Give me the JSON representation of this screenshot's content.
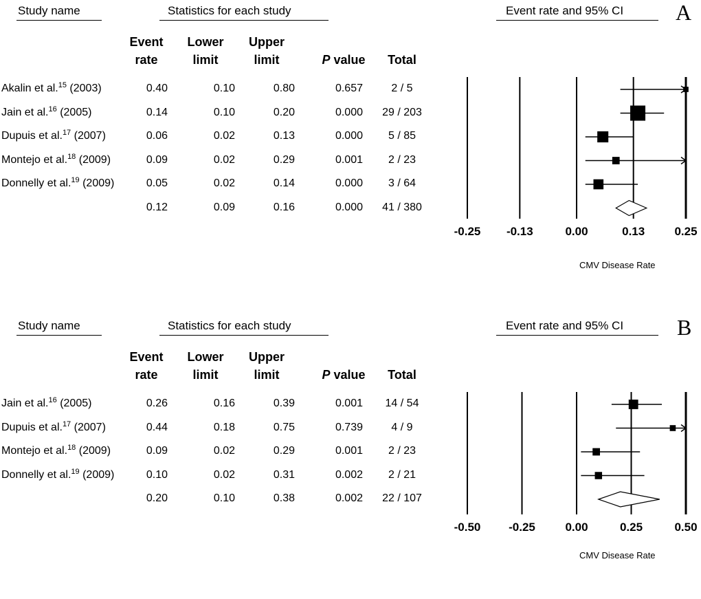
{
  "headers": {
    "study_name": "Study name",
    "statistics": "Statistics for each study",
    "forest": "Event rate and 95% CI",
    "cols": {
      "event_1": "Event",
      "event_2": "rate",
      "lower_1": "Lower",
      "lower_2": "limit",
      "upper_1": "Upper",
      "upper_2": "limit",
      "p_italic": "P",
      "p_rest": " value",
      "total": "Total"
    }
  },
  "chart_data": [
    {
      "type": "forest",
      "panel": "A",
      "xlabel": "CMV Disease Rate",
      "xlim": [
        -0.25,
        0.25
      ],
      "ticks": [
        "-0.25",
        "-0.13",
        "0.00",
        "0.13",
        "0.25"
      ],
      "rows": [
        {
          "study": "Akalin et al.",
          "ref": "15",
          "year": "(2003)",
          "rate": "0.40",
          "lower": "0.10",
          "upper": "0.80",
          "p": "0.657",
          "total": "2 / 5",
          "rate_v": 0.4,
          "lower_v": 0.1,
          "upper_v": 0.8
        },
        {
          "study": "Jain et al.",
          "ref": "16",
          "year": "(2005)",
          "rate": "0.14",
          "lower": "0.10",
          "upper": "0.20",
          "p": "0.000",
          "total": "29 / 203",
          "rate_v": 0.14,
          "lower_v": 0.1,
          "upper_v": 0.2
        },
        {
          "study": "Dupuis et al.",
          "ref": "17",
          "year": "(2007)",
          "rate": "0.06",
          "lower": "0.02",
          "upper": "0.13",
          "p": "0.000",
          "total": "5 / 85",
          "rate_v": 0.06,
          "lower_v": 0.02,
          "upper_v": 0.13
        },
        {
          "study": "Montejo et al.",
          "ref": "18",
          "year": "(2009)",
          "rate": "0.09",
          "lower": "0.02",
          "upper": "0.29",
          "p": "0.001",
          "total": "2 / 23",
          "rate_v": 0.09,
          "lower_v": 0.02,
          "upper_v": 0.29
        },
        {
          "study": "Donnelly et al.",
          "ref": "19",
          "year": "(2009)",
          "rate": "0.05",
          "lower": "0.02",
          "upper": "0.14",
          "p": "0.000",
          "total": "3 / 64",
          "rate_v": 0.05,
          "lower_v": 0.02,
          "upper_v": 0.14
        }
      ],
      "summary": {
        "rate": "0.12",
        "lower": "0.09",
        "upper": "0.16",
        "p": "0.000",
        "total": "41 / 380",
        "rate_v": 0.12,
        "lower_v": 0.09,
        "upper_v": 0.16
      }
    },
    {
      "type": "forest",
      "panel": "B",
      "xlabel": "CMV Disease Rate",
      "xlim": [
        -0.5,
        0.5
      ],
      "ticks": [
        "-0.50",
        "-0.25",
        "0.00",
        "0.25",
        "0.50"
      ],
      "rows": [
        {
          "study": "Jain et al.",
          "ref": "16",
          "year": "(2005)",
          "rate": "0.26",
          "lower": "0.16",
          "upper": "0.39",
          "p": "0.001",
          "total": "14 / 54",
          "rate_v": 0.26,
          "lower_v": 0.16,
          "upper_v": 0.39
        },
        {
          "study": "Dupuis et al.",
          "ref": "17",
          "year": "(2007)",
          "rate": "0.44",
          "lower": "0.18",
          "upper": "0.75",
          "p": "0.739",
          "total": "4 / 9",
          "rate_v": 0.44,
          "lower_v": 0.18,
          "upper_v": 0.75
        },
        {
          "study": "Montejo et al.",
          "ref": "18",
          "year": "(2009)",
          "rate": "0.09",
          "lower": "0.02",
          "upper": "0.29",
          "p": "0.001",
          "total": "2 / 23",
          "rate_v": 0.09,
          "lower_v": 0.02,
          "upper_v": 0.29
        },
        {
          "study": "Donnelly et al.",
          "ref": "19",
          "year": "(2009)",
          "rate": "0.10",
          "lower": "0.02",
          "upper": "0.31",
          "p": "0.002",
          "total": "2 / 21",
          "rate_v": 0.1,
          "lower_v": 0.02,
          "upper_v": 0.31
        }
      ],
      "summary": {
        "rate": "0.20",
        "lower": "0.10",
        "upper": "0.38",
        "p": "0.002",
        "total": "22 / 107",
        "rate_v": 0.2,
        "lower_v": 0.1,
        "upper_v": 0.38
      }
    }
  ]
}
